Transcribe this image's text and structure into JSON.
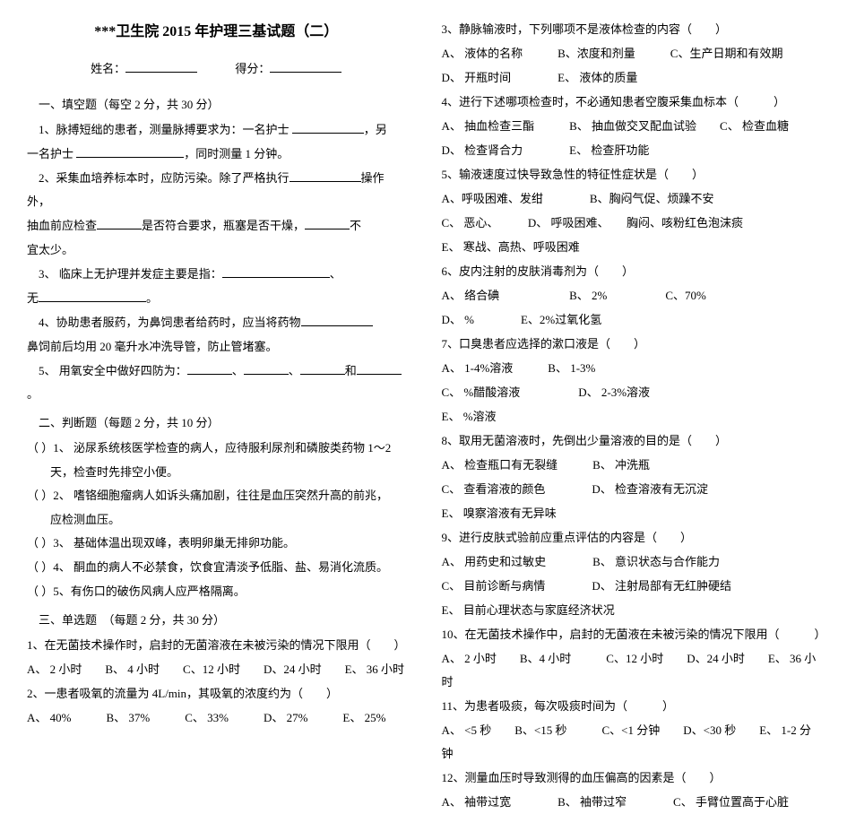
{
  "title": "***卫生院 2015 年护理三基试题（二）",
  "name_label": "姓名：",
  "score_label": "得分：",
  "section1": {
    "header": "一、填空题（每空 2 分，共 30 分）",
    "q1_a": "1、脉搏短绌的患者，测量脉搏要求为：一名护士 ",
    "q1_b": "，另",
    "q1_c": "一名护士 ",
    "q1_d": "，同时测量 1 分钟。",
    "q2_a": "2、采集血培养标本时，应防污染。除了严格执行",
    "q2_b": "操作外，",
    "q2_c": "抽血前应检查",
    "q2_d": "是否符合要求，瓶塞是否干燥，",
    "q2_e": "不",
    "q2_f": "宜太少。",
    "q3_a": "3、 临床上无护理并发症主要是指：",
    "q3_b": "、",
    "q3_c": "无",
    "q3_d": "。",
    "q4_a": "4、协助患者服药，为鼻饲患者给药时，应当将药物",
    "q4_b": "鼻饲前后均用 20 毫升水冲洗导管，防止管堵塞。",
    "q5_a": "5、 用氧安全中做好四防为：",
    "q5_b": "、",
    "q5_c": "、",
    "q5_d": "和",
    "q5_e": "。"
  },
  "section2": {
    "header": "二、判断题（每题 2 分，共 10 分）",
    "q1_a": "（    ）1、 泌尿系统核医学检查的病人，应待服利尿剂和磷胺类药物 1～2",
    "q1_b": "天，检查时先排空小便。",
    "q2_a": "（    ）2、 嗜铬细胞瘤病人如诉头痛加剧，往往是血压突然升高的前兆，",
    "q2_b": "应检测血压。",
    "q3": "（    ）3、 基础体温出现双峰，表明卵巢无排卵功能。",
    "q4": "（    ）4、 酮血的病人不必禁食，饮食宜清淡予低脂、盐、易消化流质。",
    "q5": "（    ）5、有伤口的破伤风病人应严格隔离。"
  },
  "section3": {
    "header": "三、单选题　（每题 2 分，共 30 分）",
    "q1": "1、在无菌技术操作时，启封的无菌溶液在未被污染的情况下限用（　　）",
    "q1_opts": "A、 2 小时　　B、 4 小时　　C、12 小时　　D、24 小时　　E、 36 小时",
    "q2": "2、一患者吸氧的流量为 4L/min，其吸氧的浓度约为（　　）",
    "q2_opts": "A、 40%　　　B、 37%　　　C、 33%　　　D、 27%　　　E、 25%"
  },
  "col2": {
    "q3": "3、静脉输液时，下列哪项不是液体检查的内容（　　）",
    "q3_opts1": "A、 液体的名称　　　B、浓度和剂量　　　C、生产日期和有效期",
    "q3_opts2": "D、 开瓶时间　　　　E、 液体的质量",
    "q4": "4、进行下述哪项检查时，不必通知患者空腹采集血标本（　　　）",
    "q4_opts1": "A、 抽血检查三酯　　　B、 抽血做交叉配血试验　　C、 检查血糖",
    "q4_opts2": "D、 检查肾合力　　　　E、 检查肝功能",
    "q5": "5、输液速度过快导致急性的特征性症状是（　　）",
    "q5_opts1": "A、呼吸困难、发绀　　　　B、胸闷气促、烦躁不安",
    "q5_opts2": "C、 恶心、　　　D、 呼吸困难、　　胸闷、咳粉红色泡沫痰",
    "q5_opts3": "E、 寒战、高热、呼吸困难",
    "q6": "6、皮内注射的皮肤消毒剂为（　　）",
    "q6_opts1": "A、 络合碘　　　　　　B、 2%　　　　　C、70%",
    "q6_opts2": "D、 %　　　　E、2%过氧化氢",
    "q7": "7、口臭患者应选择的漱口液是（　　）",
    "q7_opts1": "A、 1-4%溶液　　　B、 1-3%",
    "q7_opts2": "C、 %醋酸溶液　　　　　D、 2-3%溶液",
    "q7_opts3": "E、 %溶液",
    "q8": "8、取用无菌溶液时，先倒出少量溶液的目的是（　　）",
    "q8_opts1": "A、 检查瓶口有无裂缝　　　B、 冲洗瓶",
    "q8_opts2": "C、 查看溶液的颜色　　　　D、 检查溶液有无沉淀",
    "q8_opts3": "E、 嗅察溶液有无异味",
    "q9": "9、进行皮肤式验前应重点评估的内容是（　　）",
    "q9_opts1": "A、 用药史和过敏史　　　　B、 意识状态与合作能力",
    "q9_opts2": "C、 目前诊断与病情　　　　D、 注射局部有无红肿硬结",
    "q9_opts3": "E、 目前心理状态与家庭经济状况",
    "q10": "10、在无菌技术操作中，启封的无菌液在未被污染的情况下限用（　　　）",
    "q10_opts": "A、 2 小时　　B、4 小时　　　C、12 小时　　D、24 小时　　E、 36 小时",
    "q11": "11、为患者吸痰，每次吸痰时间为（　　　）",
    "q11_opts": "A、 <5 秒　　B、<15 秒　　　C、<1 分钟　　D、<30 秒　　E、 1-2 分钟",
    "q12": "12、测量血压时导致测得的血压偏高的因素是（　　）",
    "q12_opts": "A、 袖带过宽　　　　B、 袖带过窄　　　　C、 手臂位置高于心脏"
  }
}
